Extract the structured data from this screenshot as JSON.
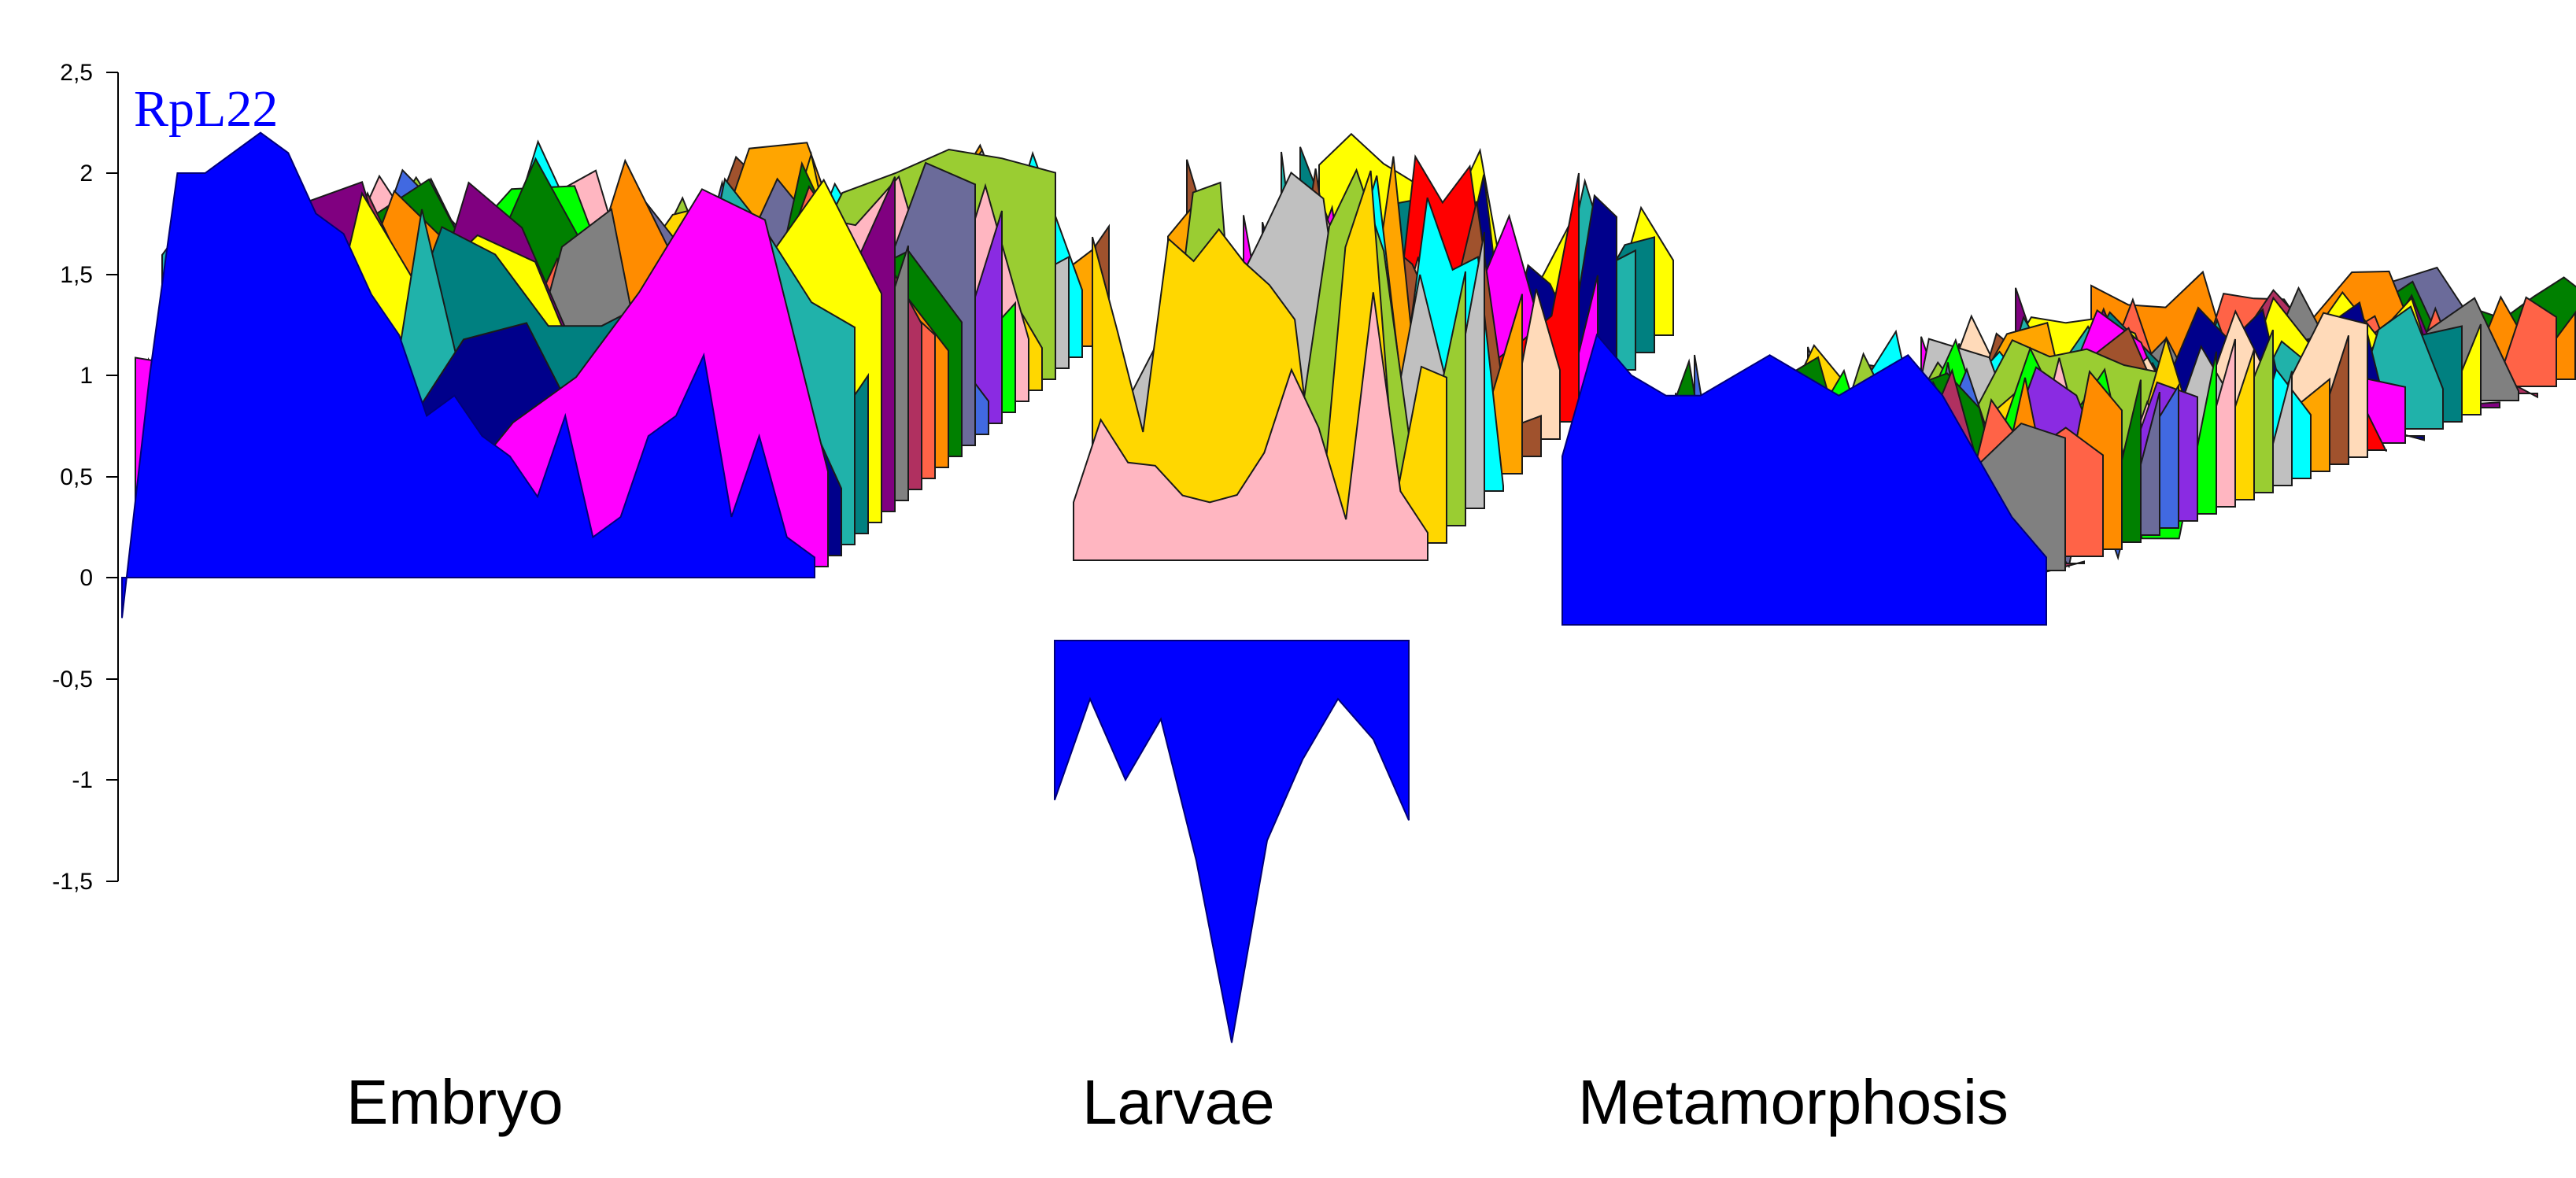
{
  "chart_data": {
    "type": "area",
    "view": "3d-waterfall",
    "title": "RpL22",
    "xlabel": "",
    "ylabel": "",
    "ylim": [
      -1.5,
      2.5
    ],
    "yticks": [
      "2,5",
      "2",
      "1,5",
      "1",
      "0,5",
      "0",
      "-0,5",
      "-1",
      "-1,5"
    ],
    "ytick_values": [
      2.5,
      2,
      1.5,
      1,
      0.5,
      0,
      -0.5,
      -1,
      -1.5
    ],
    "grid": false,
    "stages": [
      "Embryo",
      "Larvae",
      "Metamorphosis"
    ],
    "colors": {
      "highlight": "#0000ff",
      "palette": [
        "#ff0000",
        "#ffff00",
        "#ff8c00",
        "#00ff00",
        "#00ffff",
        "#ff00ff",
        "#800080",
        "#008000",
        "#ffb6c1",
        "#ffa500",
        "#00008b",
        "#808080",
        "#6b6b9a",
        "#ffd700",
        "#a0522d",
        "#20b2aa",
        "#b03060",
        "#4169e1",
        "#9acd32",
        "#ffdab9",
        "#008080",
        "#ff6347",
        "#8a2be2",
        "#c0c0c0"
      ]
    },
    "series": [
      {
        "name": "RpL22",
        "stage": "Embryo",
        "values": [
          -0.2,
          1.0,
          2.0,
          2.0,
          2.1,
          2.2,
          2.1,
          1.8,
          1.7,
          1.4,
          1.2,
          0.8,
          0.9,
          0.7,
          0.6,
          0.4,
          0.8,
          0.2,
          0.3,
          0.7,
          0.8,
          1.1,
          0.3,
          0.7,
          0.2,
          0.1
        ]
      },
      {
        "name": "RpL22",
        "stage": "Larvae",
        "values": [
          -1.1,
          -0.6,
          -1.0,
          -0.7,
          -1.4,
          -2.3,
          -1.3,
          -0.9,
          -0.6,
          -0.8,
          -1.2
        ]
      },
      {
        "name": "RpL22",
        "stage": "Metamorphosis",
        "values": [
          0.6,
          1.2,
          1.0,
          0.9,
          0.9,
          1.0,
          1.1,
          1.0,
          0.9,
          1.0,
          1.1,
          0.9,
          0.6,
          0.3,
          0.1
        ]
      }
    ]
  }
}
